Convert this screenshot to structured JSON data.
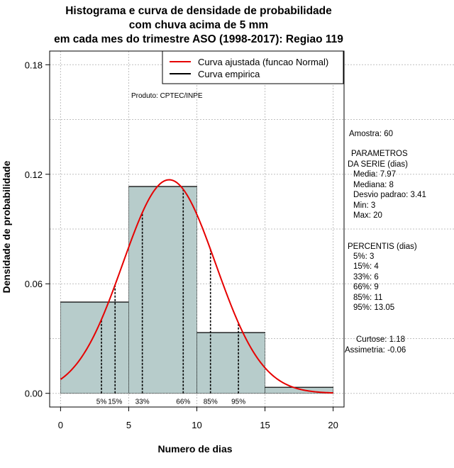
{
  "title_lines": [
    "Histograma e curva de densidade de probabilidade",
    "com chuva acima de 5 mm",
    "em cada mes do trimestre ASO (1998-2017): Regiao 119"
  ],
  "product_label": "Produto: CPTEC/INPE",
  "side_panel": {
    "sample": "Amostra: 60",
    "params_title_1": "PARAMETROS",
    "params_title_2": "DA SERIE (dias)",
    "mean": "Media: 7.97",
    "median": "Mediana: 8",
    "sd": "Desvio padrao: 3.41",
    "min": "Min: 3",
    "max": "Max: 20",
    "percentiles_title": "PERCENTIS (dias)",
    "p5": "5%: 3",
    "p15": "15%: 4",
    "p33": "33%: 6",
    "p66": "66%: 9",
    "p85": "85%: 11",
    "p95": "95%: 13.05",
    "kurtosis": "Curtose: 1.18",
    "skewness": "Assimetria: -0.06"
  },
  "colors": {
    "bar_fill": "#b7cccb",
    "normal_curve": "#e60000",
    "empirical_line": "#000000",
    "grid": "#bfbfbf"
  },
  "chart_data": {
    "type": "bar",
    "xlabel": "Numero de dias",
    "ylabel": "Densidade de probabilidade",
    "xlim": [
      -0.8,
      20.8
    ],
    "ylim": [
      -0.0075,
      0.1875
    ],
    "x_ticks": [
      0,
      5,
      10,
      15,
      20
    ],
    "y_ticks": [
      0.0,
      0.06,
      0.12,
      0.18
    ],
    "y_tick_labels": [
      "0.00",
      "0.06",
      "0.12",
      "0.18"
    ],
    "grid": true,
    "bins": [
      {
        "from": 0,
        "to": 5,
        "density": 0.05
      },
      {
        "from": 5,
        "to": 10,
        "density": 0.1133
      },
      {
        "from": 10,
        "to": 15,
        "density": 0.0333
      },
      {
        "from": 15,
        "to": 20,
        "density": 0.0033
      }
    ],
    "normal_curve": {
      "mean": 7.97,
      "sd": 3.41,
      "x_from": 0,
      "x_to": 20
    },
    "percentile_markers": [
      {
        "label": "5%",
        "x": 3
      },
      {
        "label": "15%",
        "x": 4
      },
      {
        "label": "33%",
        "x": 6
      },
      {
        "label": "66%",
        "x": 9
      },
      {
        "label": "85%",
        "x": 11
      },
      {
        "label": "95%",
        "x": 13.05
      }
    ],
    "legend": {
      "position": "top-right",
      "entries": [
        {
          "label": "Curva ajustada (funcao Normal)",
          "color": "#e60000"
        },
        {
          "label": "Curva empirica",
          "color": "#000000"
        }
      ]
    }
  }
}
